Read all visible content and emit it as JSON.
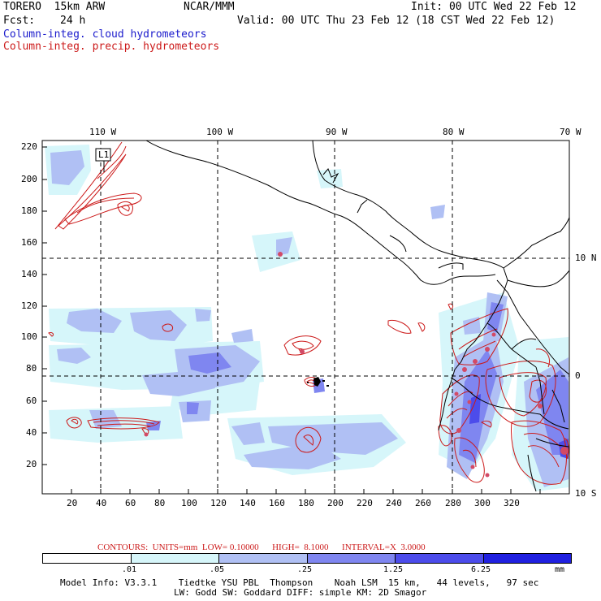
{
  "header": {
    "model_name": "TORERO  15km ARW",
    "center": "NCAR/MMM",
    "init": "Init: 00 UTC Wed 22 Feb 12",
    "fcst_label": "Fcst:",
    "fcst_value": "24 h",
    "valid": "Valid: 00 UTC Thu 23 Feb 12 (18 CST Wed 22 Feb 12)",
    "field_cloud": "Column-integ. cloud hydrometeors",
    "field_precip": "Column-integ. precip. hydrometeors"
  },
  "map": {
    "top_lon_labels": [
      "110 W",
      "100 W",
      "90 W",
      "80 W",
      "70 W"
    ],
    "right_lat_labels": [
      "10 N",
      "0",
      "10 S"
    ],
    "left_ticks": [
      "220",
      "200",
      "180",
      "160",
      "140",
      "120",
      "100",
      "80",
      "60",
      "40",
      "20"
    ],
    "bottom_ticks": [
      "20",
      "40",
      "60",
      "80",
      "100",
      "120",
      "140",
      "160",
      "180",
      "200",
      "220",
      "240",
      "260",
      "280",
      "300",
      "320"
    ],
    "section_marker": "L1",
    "cloud_color": "#7a82f0",
    "precip_color": "#cc1a1a"
  },
  "contours": {
    "label": "CONTOURS:  UNITS=mm  LOW= 0.10000      HIGH=  8.1000      INTERVAL=X  3.0000"
  },
  "colorbar": {
    "labels": [
      ".01",
      ".05",
      ".25",
      "1.25",
      "6.25"
    ],
    "units": "mm",
    "colors": [
      "#ffffff",
      "#d6f6fa",
      "#b0c0f4",
      "#7f86f0",
      "#4c4ceb",
      "#2020e0"
    ]
  },
  "footer": {
    "line1": "Model Info: V3.3.1    Tiedtke YSU PBL  Thompson    Noah LSM  15 km,   44 levels,   97 sec",
    "line2": "LW: Godd SW: Goddard DIFF: simple KM: 2D Smagor"
  }
}
